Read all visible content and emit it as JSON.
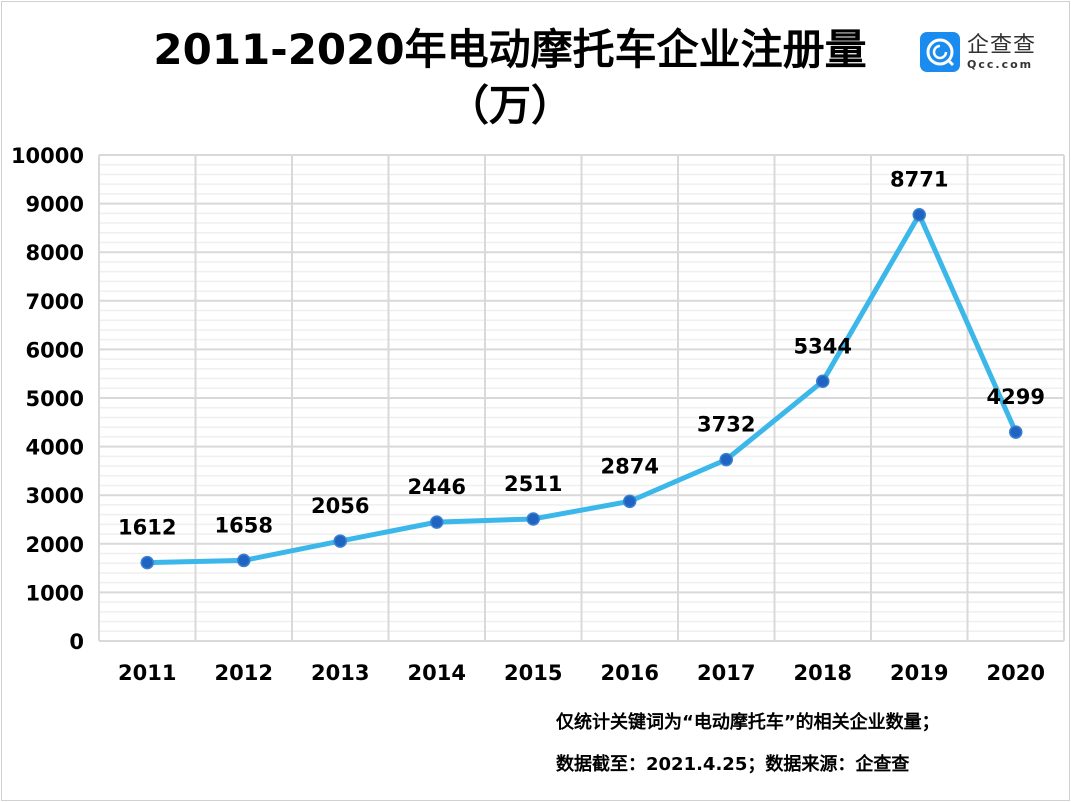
{
  "chart_data": {
    "type": "line",
    "title": "2011-2020年电动摩托车企业注册量",
    "title_line2": "（万）",
    "categories": [
      "2011",
      "2012",
      "2013",
      "2014",
      "2015",
      "2016",
      "2017",
      "2018",
      "2019",
      "2020"
    ],
    "values": [
      1612,
      1658,
      2056,
      2446,
      2511,
      2874,
      3732,
      5344,
      8771,
      4299
    ],
    "data_labels": [
      "1612",
      "1658",
      "2056",
      "2446",
      "2511",
      "2874",
      "3732",
      "5344",
      "8771",
      "4299"
    ],
    "yticks": [
      "0",
      "1000",
      "2000",
      "3000",
      "4000",
      "5000",
      "6000",
      "7000",
      "8000",
      "9000",
      "10000"
    ],
    "ylim": [
      0,
      10000
    ],
    "grid": true,
    "line_color": "#3bb7ea",
    "marker_color": "#1f64c0"
  },
  "logo": {
    "cn": "企查查",
    "en": "Qcc.com",
    "color": "#1a8cf0"
  },
  "notes": [
    "仅统计关键词为“电动摩托车”的相关企业数量；",
    "数据截至：2021.4.25；数据来源：企查查"
  ]
}
